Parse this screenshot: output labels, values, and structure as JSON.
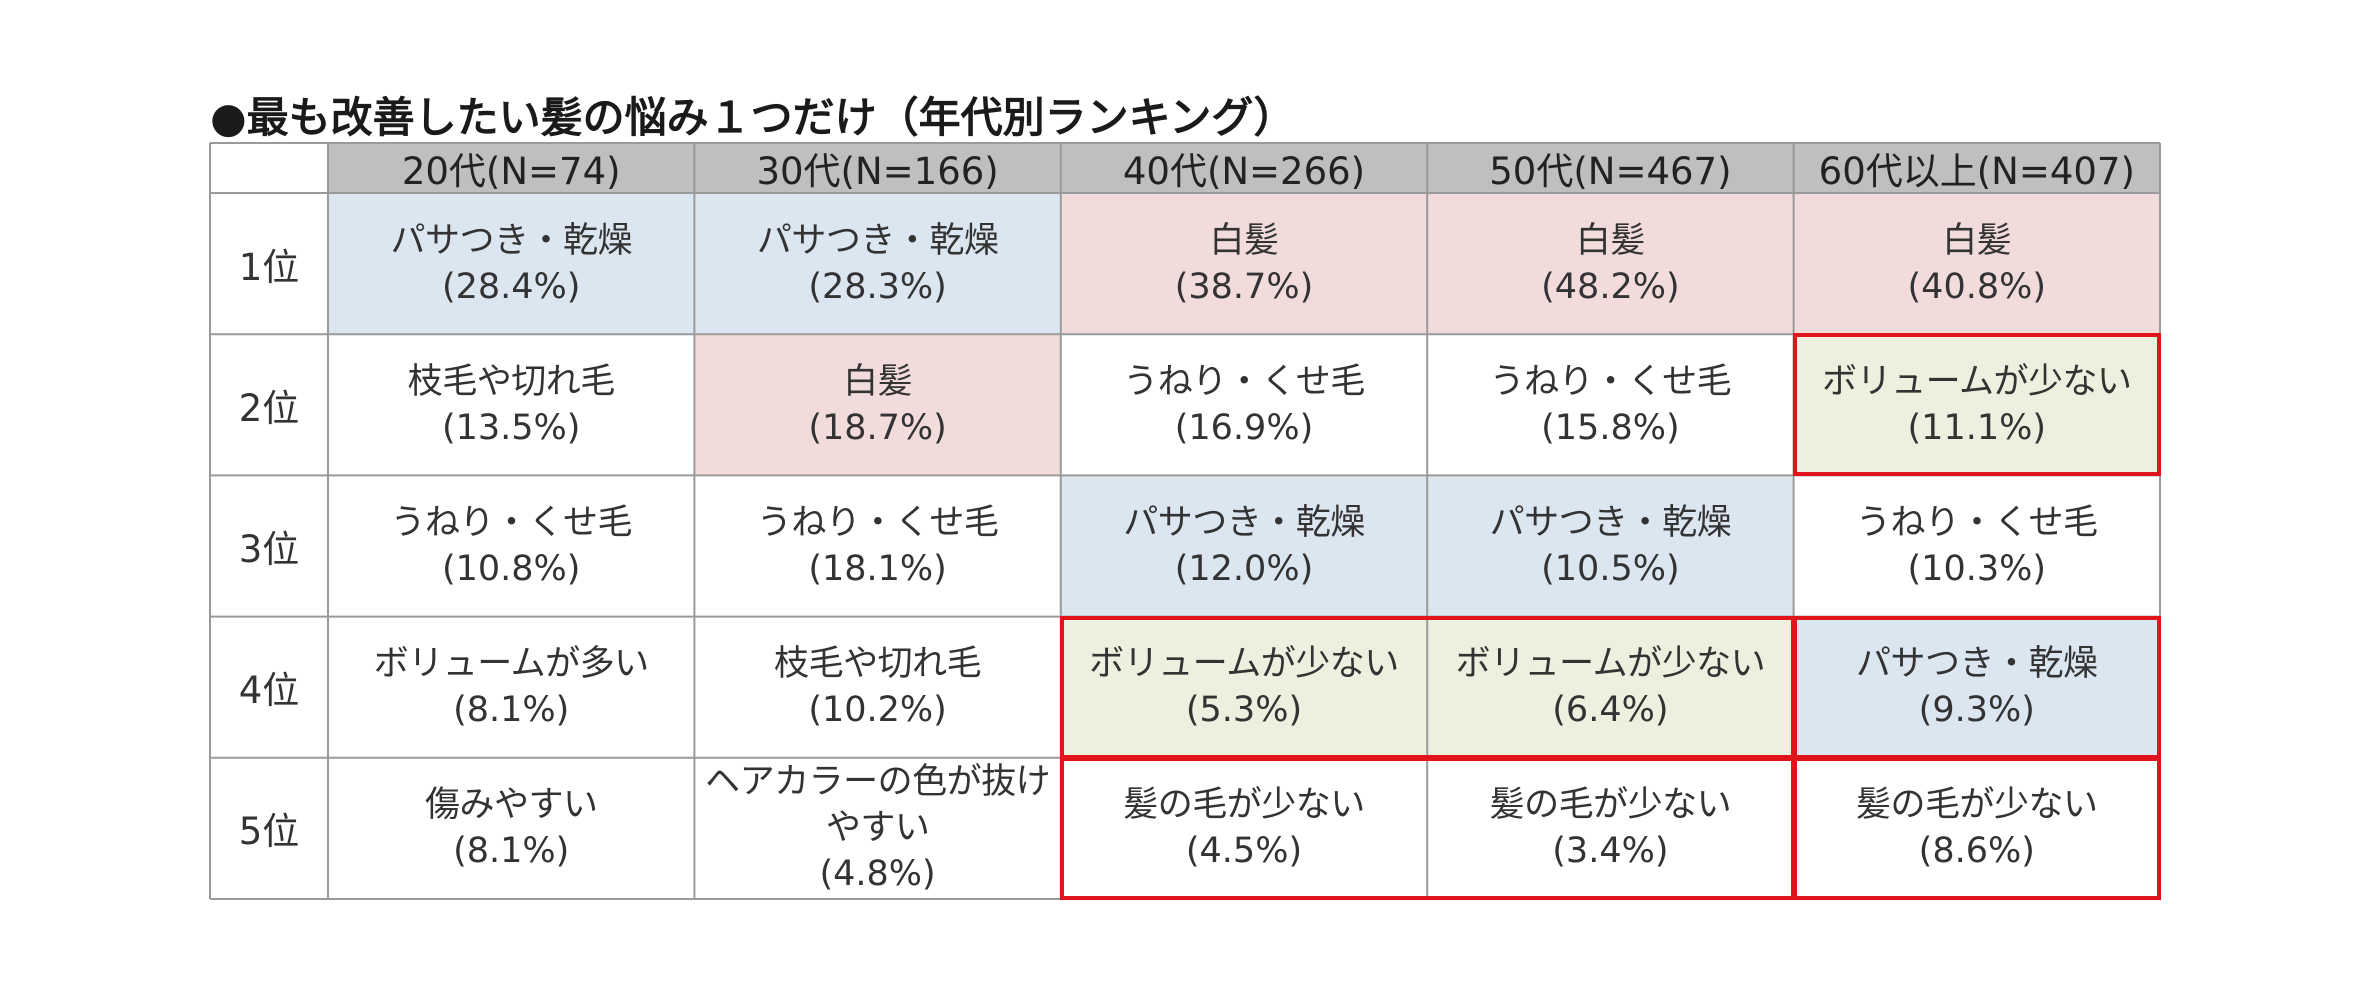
{
  "title": "●最も改善したい髪の悩み１つだけ（年代別ランキング）",
  "chart_data": {
    "type": "table",
    "title": "●最も改善したい髪の悩み１つだけ（年代別ランキング）",
    "columns": [
      "20代(N=74)",
      "30代(N=166)",
      "40代(N=266)",
      "50代(N=467)",
      "60代以上(N=407)"
    ],
    "ranks": [
      "1位",
      "2位",
      "3位",
      "4位",
      "5位"
    ],
    "cells": [
      [
        {
          "label": "パサつき・乾燥",
          "value": "(28.4%)",
          "color": "#dce6f1"
        },
        {
          "label": "パサつき・乾燥",
          "value": "(28.3%)",
          "color": "#dce6f1"
        },
        {
          "label": "白髪",
          "value": "(38.7%)",
          "color": "#f2dcdb"
        },
        {
          "label": "白髪",
          "value": "(48.2%)",
          "color": "#f2dcdb"
        },
        {
          "label": "白髪",
          "value": "(40.8%)",
          "color": "#f2dcdb"
        }
      ],
      [
        {
          "label": "枝毛や切れ毛",
          "value": "(13.5%)",
          "color": "#ffffff"
        },
        {
          "label": "白髪",
          "value": "(18.7%)",
          "color": "#f2dcdb"
        },
        {
          "label": "うねり・くせ毛",
          "value": "(16.9%)",
          "color": "#ffffff"
        },
        {
          "label": "うねり・くせ毛",
          "value": "(15.8%)",
          "color": "#ffffff"
        },
        {
          "label": "ボリュームが少ない",
          "value": "(11.1%)",
          "color": "#ebf1de"
        }
      ],
      [
        {
          "label": "うねり・くせ毛",
          "value": "(10.8%)",
          "color": "#ffffff"
        },
        {
          "label": "うねり・くせ毛",
          "value": "(18.1%)",
          "color": "#ffffff"
        },
        {
          "label": "パサつき・乾燥",
          "value": "(12.0%)",
          "color": "#dce6f1"
        },
        {
          "label": "パサつき・乾燥",
          "value": "(10.5%)",
          "color": "#dce6f1"
        },
        {
          "label": "うねり・くせ毛",
          "value": "(10.3%)",
          "color": "#ffffff"
        }
      ],
      [
        {
          "label": "ボリュームが多い",
          "value": "(8.1%)",
          "color": "#ffffff"
        },
        {
          "label": "枝毛や切れ毛",
          "value": "(10.2%)",
          "color": "#ffffff"
        },
        {
          "label": "ボリュームが少ない",
          "value": "(5.3%)",
          "color": "#ebf1de"
        },
        {
          "label": "ボリュームが少ない",
          "value": "(6.4%)",
          "color": "#ebf1de"
        },
        {
          "label": "パサつき・乾燥",
          "value": "(9.3%)",
          "color": "#dce6f1"
        }
      ],
      [
        {
          "label": "傷みやすい",
          "value": "(8.1%)",
          "color": "#ffffff"
        },
        {
          "label": "ヘアカラーの色が抜けやすい",
          "value": "(4.8%)",
          "color": "#ffffff"
        },
        {
          "label": "髪の毛が少ない",
          "value": "(4.5%)",
          "color": "#ffffff"
        },
        {
          "label": "髪の毛が少ない",
          "value": "(3.4%)",
          "color": "#ffffff"
        },
        {
          "label": "髪の毛が少ない",
          "value": "(8.6%)",
          "color": "#ffffff"
        }
      ]
    ],
    "header_color": "#bfbfbf",
    "grid_color": "#9a9a9a",
    "highlight_color": "#e0141b",
    "highlights": [
      {
        "rows": [
          1,
          1
        ],
        "cols": [
          4,
          4
        ]
      },
      {
        "rows": [
          3,
          3
        ],
        "cols": [
          2,
          3
        ]
      },
      {
        "rows": [
          3,
          3
        ],
        "cols": [
          4,
          4
        ]
      },
      {
        "rows": [
          4,
          4
        ],
        "cols": [
          2,
          3
        ]
      },
      {
        "rows": [
          4,
          4
        ],
        "cols": [
          4,
          4
        ]
      }
    ]
  }
}
